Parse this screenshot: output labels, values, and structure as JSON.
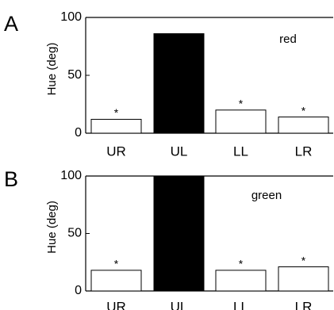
{
  "chart_data": [
    {
      "panel": "A",
      "type": "bar",
      "annotation": "red",
      "ylabel": "Hue (deg)",
      "ylim": [
        0,
        100
      ],
      "yticks": [
        "0",
        "50",
        "100"
      ],
      "categories": [
        "UR",
        "UL",
        "LL",
        "LR"
      ],
      "values": [
        12,
        86,
        20,
        14
      ],
      "bar_colors": [
        "#ffffff",
        "#000000",
        "#ffffff",
        "#ffffff"
      ],
      "stars": [
        "*",
        "",
        "*",
        "*"
      ]
    },
    {
      "panel": "B",
      "type": "bar",
      "annotation": "green",
      "ylabel": "Hue (deg)",
      "ylim": [
        0,
        100
      ],
      "yticks": [
        "0",
        "50",
        "100"
      ],
      "categories": [
        "UR",
        "UL",
        "LL",
        "LR"
      ],
      "values": [
        18,
        100,
        18,
        21
      ],
      "bar_colors": [
        "#ffffff",
        "#000000",
        "#ffffff",
        "#ffffff"
      ],
      "stars": [
        "*",
        "",
        "*",
        "*"
      ]
    }
  ]
}
